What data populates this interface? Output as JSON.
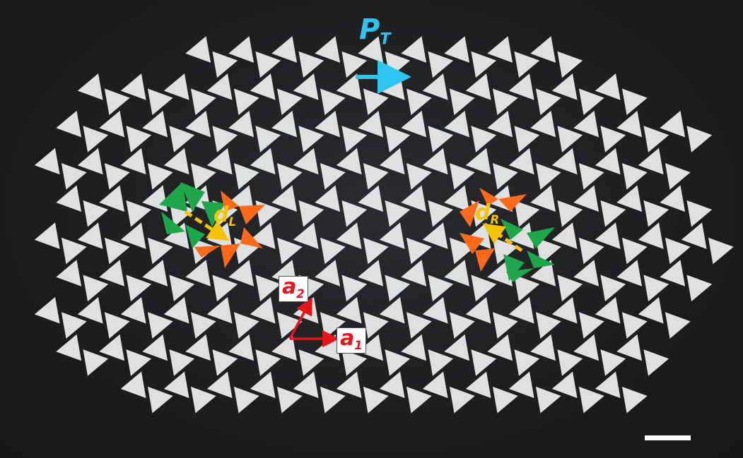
{
  "image": {
    "description_free": true,
    "colors": {
      "background": "#1c1d1f",
      "lattice": "#e9ebec",
      "left_defect_green": "#1fa64a",
      "left_defect_orange": "#ff6a1a",
      "polarization_arrow": "#2ec4f0",
      "defect_arrows": "#f5c300",
      "lattice_vectors": "#e8141c",
      "scale_bar": "#ffffff"
    }
  },
  "labels": {
    "pt_main": "P",
    "pt_sub": "T",
    "dl_main": "d",
    "dl_sub": "L",
    "dr_main": "d",
    "dr_sub": "R",
    "a2_main": "a",
    "a2_sub": "2",
    "a1_main": "a",
    "a1_sub": "1"
  }
}
